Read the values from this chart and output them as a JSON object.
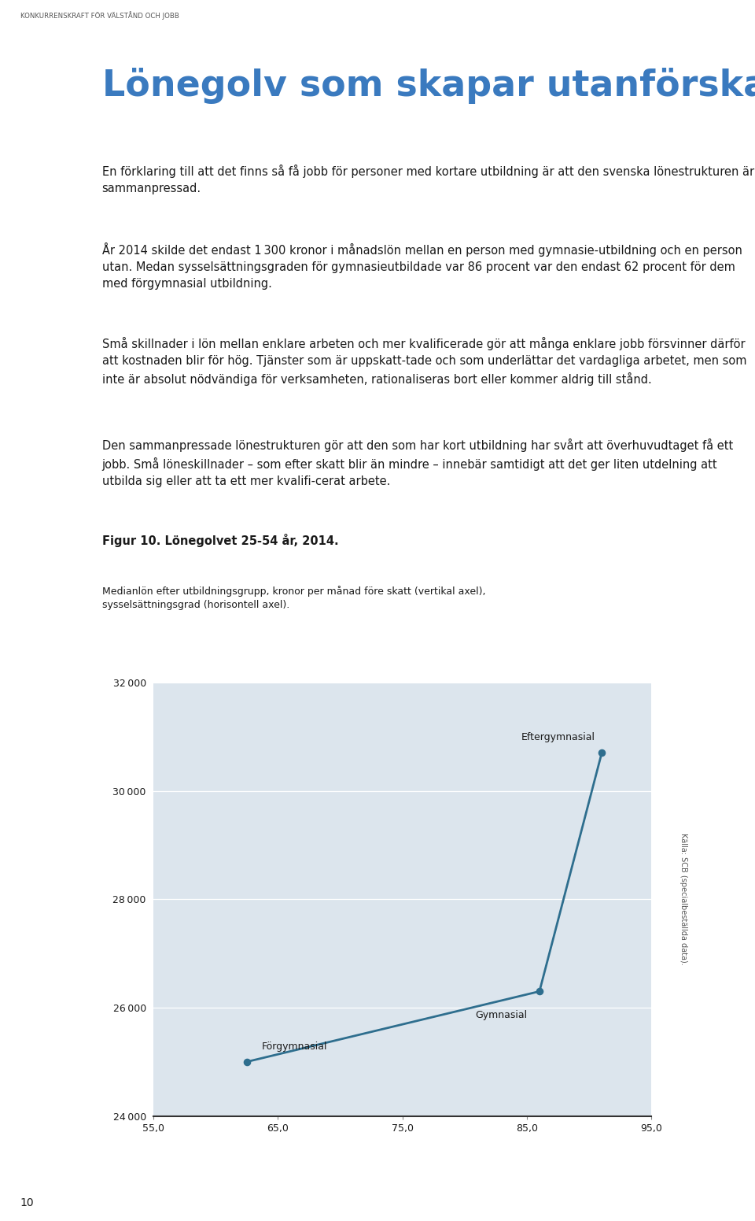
{
  "title": "Lönegolv som skapar utanförskap",
  "header_label": "KONKURRENSKRAFT FÖR VÄLSTÅND OCH JOBB",
  "fig_title": "Figur 10. Lönegolvet 25-54 år, 2014.",
  "fig_subtitle": "Medianlön efter utbildningsgrupp, kronor per månad före skatt (vertikal axel),\nsysselsättningsgrad (horisontell axel).",
  "source_text": "Källa: SCB (specialbeställda data).",
  "page_number": "10",
  "data_x": [
    62.5,
    86.0,
    91.0
  ],
  "data_y": [
    25000,
    26300,
    30700
  ],
  "line_color": "#2e6e8e",
  "marker_color": "#2e6e8e",
  "plot_bg": "#dce5ed",
  "page_bg": "#ffffff",
  "xlim": [
    55.0,
    95.0
  ],
  "ylim": [
    24000,
    32000
  ],
  "xticks": [
    55.0,
    65.0,
    75.0,
    85.0,
    95.0
  ],
  "yticks": [
    24000,
    26000,
    28000,
    30000,
    32000
  ],
  "title_color": "#3a7abf",
  "text_color": "#1a1a1a",
  "grid_color": "#ffffff",
  "axis_color": "#333333"
}
